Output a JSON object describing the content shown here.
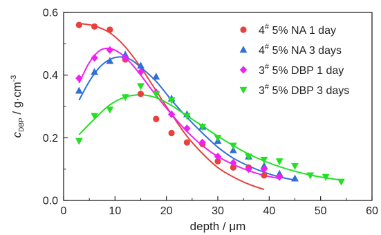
{
  "chart_data": {
    "type": "scatter",
    "xlabel": "depth / μm",
    "ylabel": "c_DBP / g·cm⁻³",
    "xlim": [
      0,
      60
    ],
    "ylim": [
      0,
      0.6
    ],
    "xticks": [
      0,
      10,
      20,
      30,
      40,
      50,
      60
    ],
    "yticks": [
      0.0,
      0.2,
      0.4,
      0.6
    ],
    "grid": false,
    "legend": "top-right",
    "series": [
      {
        "name": "4# 5% NA 1 day",
        "legend_sup": "#",
        "legend_pre": "4",
        "legend_post": " 5% NA 1 day",
        "marker": "circle",
        "color": "#e8403a",
        "points": [
          [
            3,
            0.56
          ],
          [
            6,
            0.555
          ],
          [
            9,
            0.545
          ],
          [
            12,
            0.45
          ],
          [
            15,
            0.34
          ],
          [
            18,
            0.26
          ],
          [
            21,
            0.215
          ],
          [
            24,
            0.185
          ],
          [
            27,
            0.18
          ],
          [
            30,
            0.125
          ],
          [
            33,
            0.105
          ],
          [
            36,
            0.105
          ],
          [
            39,
            0.08
          ]
        ],
        "fit": [
          [
            3,
            0.565
          ],
          [
            6,
            0.557
          ],
          [
            9,
            0.535
          ],
          [
            12,
            0.49
          ],
          [
            15,
            0.425
          ],
          [
            18,
            0.35
          ],
          [
            21,
            0.275
          ],
          [
            24,
            0.205
          ],
          [
            27,
            0.15
          ],
          [
            30,
            0.105
          ],
          [
            33,
            0.075
          ],
          [
            36,
            0.052
          ],
          [
            39,
            0.035
          ]
        ]
      },
      {
        "name": "4# 5% NA 3 days",
        "legend_sup": "#",
        "legend_pre": "4",
        "legend_post": " 5% NA  3 days",
        "marker": "triangle-up",
        "color": "#2f6fd6",
        "points": [
          [
            3,
            0.35
          ],
          [
            6,
            0.41
          ],
          [
            9,
            0.445
          ],
          [
            12,
            0.465
          ],
          [
            15,
            0.43
          ],
          [
            18,
            0.395
          ],
          [
            21,
            0.325
          ],
          [
            24,
            0.275
          ],
          [
            27,
            0.235
          ],
          [
            30,
            0.19
          ],
          [
            33,
            0.16
          ],
          [
            36,
            0.14
          ],
          [
            39,
            0.11
          ],
          [
            42,
            0.085
          ],
          [
            45,
            0.07
          ]
        ],
        "fit": [
          [
            3,
            0.32
          ],
          [
            5,
            0.38
          ],
          [
            7,
            0.425
          ],
          [
            9,
            0.45
          ],
          [
            11,
            0.458
          ],
          [
            13,
            0.45
          ],
          [
            15,
            0.425
          ],
          [
            18,
            0.38
          ],
          [
            21,
            0.32
          ],
          [
            24,
            0.265
          ],
          [
            27,
            0.215
          ],
          [
            30,
            0.17
          ],
          [
            33,
            0.135
          ],
          [
            36,
            0.11
          ],
          [
            39,
            0.09
          ],
          [
            42,
            0.075
          ],
          [
            45,
            0.065
          ]
        ]
      },
      {
        "name": "3# 5% DBP 1 day",
        "legend_sup": "#",
        "legend_pre": "3",
        "legend_post": " 5% DBP 1 day",
        "marker": "diamond",
        "color": "#f020f0",
        "points": [
          [
            3,
            0.39
          ],
          [
            6,
            0.455
          ],
          [
            9,
            0.48
          ],
          [
            12,
            0.455
          ],
          [
            15,
            0.41
          ],
          [
            18,
            0.345
          ],
          [
            21,
            0.275
          ],
          [
            24,
            0.23
          ],
          [
            27,
            0.185
          ],
          [
            30,
            0.14
          ],
          [
            33,
            0.12
          ],
          [
            36,
            0.1
          ],
          [
            39,
            0.1
          ],
          [
            42,
            0.075
          ]
        ],
        "fit": [
          [
            3,
            0.375
          ],
          [
            5,
            0.44
          ],
          [
            7,
            0.478
          ],
          [
            9,
            0.485
          ],
          [
            11,
            0.47
          ],
          [
            13,
            0.44
          ],
          [
            15,
            0.4
          ],
          [
            18,
            0.335
          ],
          [
            21,
            0.275
          ],
          [
            24,
            0.22
          ],
          [
            27,
            0.175
          ],
          [
            30,
            0.14
          ],
          [
            33,
            0.115
          ],
          [
            36,
            0.095
          ],
          [
            39,
            0.08
          ],
          [
            42,
            0.07
          ]
        ]
      },
      {
        "name": "3# 5% DBP 3 days",
        "legend_sup": "#",
        "legend_pre": "3",
        "legend_post": " 5% DBP 3 days",
        "marker": "triangle-down",
        "color": "#22e022",
        "points": [
          [
            3,
            0.19
          ],
          [
            6,
            0.27
          ],
          [
            9,
            0.29
          ],
          [
            12,
            0.33
          ],
          [
            15,
            0.365
          ],
          [
            18,
            0.34
          ],
          [
            21,
            0.32
          ],
          [
            24,
            0.27
          ],
          [
            27,
            0.235
          ],
          [
            30,
            0.2
          ],
          [
            33,
            0.175
          ],
          [
            36,
            0.14
          ],
          [
            39,
            0.13
          ],
          [
            42,
            0.125
          ],
          [
            45,
            0.11
          ],
          [
            48,
            0.08
          ],
          [
            51,
            0.075
          ],
          [
            54,
            0.06
          ]
        ],
        "fit": [
          [
            3,
            0.21
          ],
          [
            6,
            0.26
          ],
          [
            9,
            0.305
          ],
          [
            12,
            0.33
          ],
          [
            15,
            0.337
          ],
          [
            18,
            0.328
          ],
          [
            21,
            0.303
          ],
          [
            24,
            0.27
          ],
          [
            27,
            0.238
          ],
          [
            30,
            0.205
          ],
          [
            33,
            0.175
          ],
          [
            36,
            0.148
          ],
          [
            39,
            0.126
          ],
          [
            42,
            0.108
          ],
          [
            45,
            0.093
          ],
          [
            48,
            0.081
          ],
          [
            51,
            0.072
          ],
          [
            54,
            0.065
          ]
        ]
      }
    ]
  }
}
